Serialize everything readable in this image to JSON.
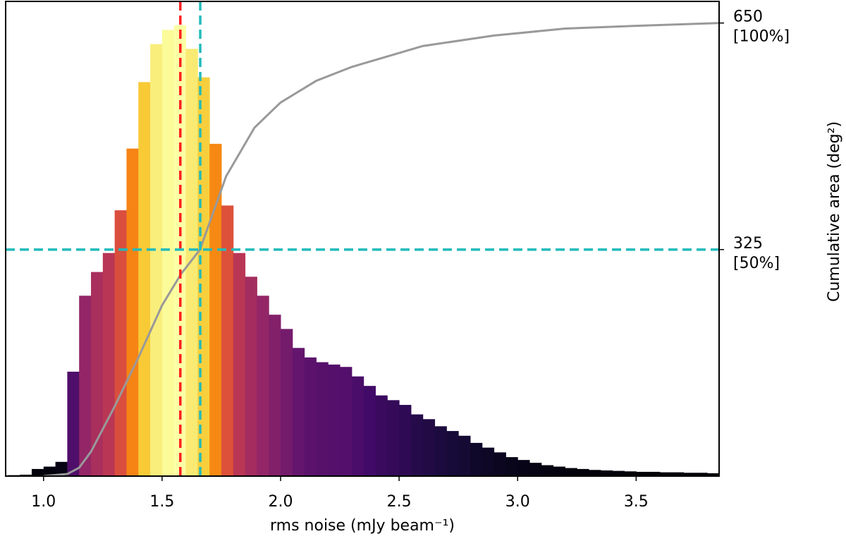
{
  "chart_data": {
    "type": "histogram",
    "xlabel": "rms noise (mJy beam⁻¹)",
    "y2label": "Cumulative area (deg²)",
    "bins": [
      0.85,
      0.9,
      0.95,
      1.0,
      1.05,
      1.1,
      1.15,
      1.2,
      1.25,
      1.3,
      1.35,
      1.4,
      1.45,
      1.5,
      1.55,
      1.6,
      1.65,
      1.7,
      1.75,
      1.8,
      1.85,
      1.9,
      1.95,
      2.0,
      2.05,
      2.1,
      2.15,
      2.2,
      2.25,
      2.3,
      2.35,
      2.4,
      2.45,
      2.5,
      2.55,
      2.6,
      2.65,
      2.7,
      2.75,
      2.8,
      2.85,
      2.9,
      2.95,
      3.0,
      3.05,
      3.1,
      3.15,
      3.2,
      3.25,
      3.3,
      3.35,
      3.4,
      3.45,
      3.5,
      3.55,
      3.6,
      3.65,
      3.7,
      3.75,
      3.8,
      3.85
    ],
    "values": [
      0.2,
      0.3,
      1.5,
      2,
      3,
      22,
      38,
      43,
      47,
      56,
      69,
      83,
      91,
      94,
      95,
      90,
      84,
      70,
      57,
      47,
      42,
      38,
      34,
      31,
      27,
      25,
      24,
      23.5,
      23,
      21,
      19,
      17,
      16,
      15,
      13,
      12,
      10.5,
      9.5,
      8.5,
      7,
      6,
      5,
      4,
      3.4,
      2.8,
      2.3,
      2,
      1.7,
      1.5,
      1.3,
      1.2,
      1.1,
      1,
      0.9,
      0.9,
      0.8,
      0.8,
      0.7,
      0.7,
      0.6
    ],
    "colormap": "inferno",
    "xlim": [
      0.84,
      3.85
    ],
    "ylim": [
      0,
      100
    ],
    "y2lim": [
      0,
      681
    ],
    "xticks": [
      {
        "value": 1,
        "label": "1.0"
      },
      1.5,
      {
        "value": 2,
        "label": "2.0"
      },
      2.5,
      {
        "value": 3,
        "label": "3.0"
      },
      3.5
    ],
    "y2ticks": [
      {
        "value": 325,
        "label": "325 [50%]"
      },
      {
        "value": 650,
        "label": "650 [100%]"
      }
    ],
    "series": [
      {
        "color": "#999999",
        "axis": "y2",
        "x": [
          1.0,
          1.1,
          1.15,
          1.2,
          1.3,
          1.4,
          1.5,
          1.58,
          1.66,
          1.77,
          1.89,
          2.0,
          2.15,
          2.3,
          2.45,
          2.6,
          2.9,
          3.2,
          3.5,
          3.85
        ],
        "values": [
          0,
          3,
          12,
          35,
          100,
          170,
          245,
          290,
          325,
          430,
          500,
          536,
          567,
          587,
          602,
          617,
          632,
          642,
          646,
          650
        ]
      }
    ],
    "vlines": [
      {
        "value": 1.577,
        "color": "#ff2020"
      },
      {
        "value": 1.661,
        "color": "#22bbbb"
      }
    ],
    "hlines": [
      {
        "value": 325,
        "axis": "y2",
        "color": "#22bbbb"
      }
    ]
  }
}
